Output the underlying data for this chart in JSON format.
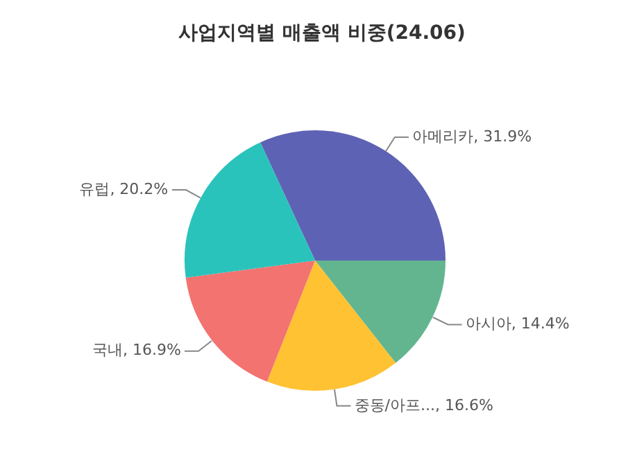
{
  "chart_data": {
    "type": "pie",
    "title": "사업지역별 매출액 비중(24.06)",
    "categories": [
      "아메리카",
      "아시아",
      "중동/아프...",
      "국내",
      "유럽"
    ],
    "values": [
      31.9,
      14.4,
      16.6,
      16.9,
      20.2
    ],
    "value_labels": [
      ", 31.9%",
      ", 14.4%",
      ", 16.6%",
      ", 16.9%",
      ", 20.2%"
    ],
    "colors": [
      "#5e62b5",
      "#63b590",
      "#ffc233",
      "#f27370",
      "#2ac3bc"
    ],
    "legend": false
  }
}
